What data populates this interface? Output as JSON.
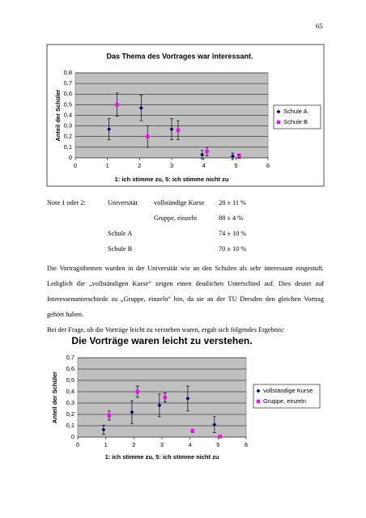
{
  "page_number": "65",
  "chart_data": [
    {
      "type": "scatter",
      "title": "Das Thema des Vortrages war interessant.",
      "x_label": "1: ich stimme zu, 5: ich stimme nicht zu",
      "y_label": "Anteil der Schüler",
      "xlim": [
        0,
        6
      ],
      "xticks": [
        0,
        1,
        2,
        3,
        4,
        5,
        6
      ],
      "ylim": [
        0,
        0.8
      ],
      "yticks": [
        0,
        {
          "value": 0.1,
          "label": "0,1"
        },
        {
          "value": 0.2,
          "label": "0,2"
        },
        {
          "value": 0.3,
          "label": "0,3"
        },
        {
          "value": 0.4,
          "label": "0,4"
        },
        {
          "value": 0.5,
          "label": "0,5"
        },
        {
          "value": 0.6,
          "label": "0,6"
        },
        {
          "value": 0.7,
          "label": "0,7"
        },
        {
          "value": 0.8,
          "label": "0,8"
        }
      ],
      "grid": true,
      "legend": "right",
      "frame": true,
      "series": [
        {
          "name": "Schule A",
          "color": "#000080",
          "marker": "diamond",
          "x": [
            1.05,
            2.05,
            3.0,
            3.95,
            4.9
          ],
          "values": [
            0.27,
            0.47,
            0.27,
            0.03,
            0.015
          ],
          "errors": [
            0.1,
            0.12,
            0.1,
            0.04,
            0.03
          ]
        },
        {
          "name": "Schule B",
          "color": "#ff00ff",
          "marker": "square",
          "x": [
            1.3,
            2.25,
            3.2,
            4.1,
            5.1
          ],
          "values": [
            0.5,
            0.2,
            0.26,
            0.06,
            0.015
          ],
          "errors": [
            0.11,
            0.1,
            0.09,
            0.04,
            0.02
          ]
        }
      ]
    },
    {
      "type": "scatter",
      "title": "Die Vorträge waren leicht zu verstehen.",
      "x_label": "1: ich stimme zu, 5: ich stimme nicht zu",
      "y_label": "Anteil der Schüler",
      "xlim": [
        0,
        6
      ],
      "xticks": [
        0,
        1,
        2,
        3,
        4,
        5,
        6
      ],
      "ylim": [
        0,
        0.7
      ],
      "yticks": [
        0,
        {
          "value": 0.1,
          "label": "0,1"
        },
        {
          "value": 0.2,
          "label": "0,2"
        },
        {
          "value": 0.3,
          "label": "0,3"
        },
        {
          "value": 0.4,
          "label": "0,4"
        },
        {
          "value": 0.5,
          "label": "0,5"
        },
        {
          "value": 0.6,
          "label": "0,6"
        },
        {
          "value": 0.7,
          "label": "0,7"
        }
      ],
      "grid": true,
      "legend": "right",
      "frame": false,
      "series": [
        {
          "name": "vollständige Kurse",
          "color": "#000080",
          "marker": "diamond",
          "x": [
            0.92,
            1.93,
            2.91,
            3.92,
            4.87
          ],
          "values": [
            0.065,
            0.22,
            0.28,
            0.34,
            0.11
          ],
          "errors": [
            0.04,
            0.1,
            0.1,
            0.11,
            0.07
          ]
        },
        {
          "name": "Gruppe, einzeln",
          "color": "#ff00ff",
          "marker": "square",
          "x": [
            1.12,
            2.13,
            3.11,
            4.09,
            5.07
          ],
          "values": [
            0.19,
            0.4,
            0.35,
            0.055,
            0.005
          ],
          "errors": [
            0.04,
            0.05,
            0.04,
            0.015,
            0.005
          ]
        }
      ]
    }
  ],
  "notes": {
    "label": "Note 1 oder 2:",
    "rows": [
      [
        "Universität",
        "vollständige Kurse",
        "28 ± 11 %"
      ],
      [
        "Gruppe, einzeln",
        "88 ± 4 %"
      ],
      [
        "Schule A",
        "74 ± 10 %"
      ],
      [
        "Schule B",
        "70 ± 10 %"
      ]
    ]
  },
  "paragraphs": [
    "Die Vortragsthemen wurden  in der Universität wie an den Schulen als sehr interessant eingestuft. Lediglich die „vollständigen Kurse“ zeigen einen deutlichen Unterschied auf. Dies deutet auf Interessenunterschiede zu „Gruppe, einzeln“ hin, da sie an der TU Dresden den gleichen Vortrag gehört haben.",
    "Bei der Frage, ob die Vorträge leicht zu verstehen waren, ergab sich folgendes Ergebnis:"
  ]
}
